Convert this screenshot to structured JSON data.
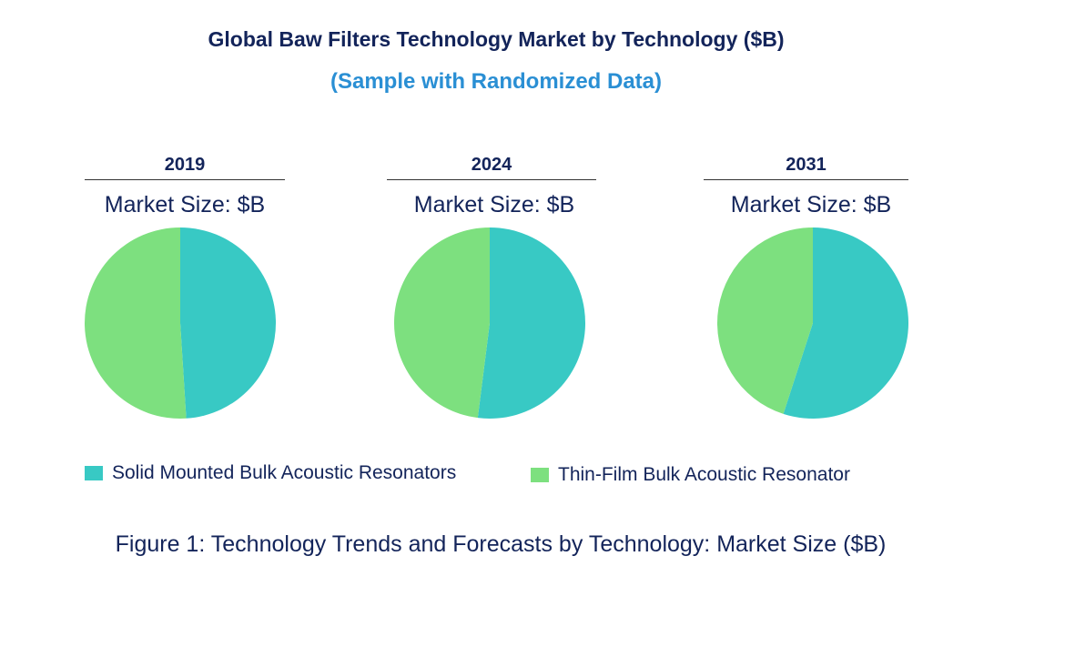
{
  "chart_data": {
    "type": "pie",
    "title": "Global Baw Filters Technology Market by Technology ($B)",
    "subtitle": "(Sample with Randomized Data)",
    "categories": [
      "Solid Mounted Bulk Acoustic Resonators",
      "Thin-Film Bulk Acoustic Resonator"
    ],
    "colors": [
      "#38c9c4",
      "#7de07f"
    ],
    "pies": [
      {
        "year": "2019",
        "label": "Market Size: $B",
        "values": [
          49,
          51
        ]
      },
      {
        "year": "2024",
        "label": "Market Size: $B",
        "values": [
          52,
          48
        ]
      },
      {
        "year": "2031",
        "label": "Market Size: $B",
        "values": [
          55,
          45
        ]
      }
    ],
    "legend_position": "bottom",
    "caption": "Figure 1: Technology Trends and Forecasts by Technology: Market Size ($B)"
  }
}
